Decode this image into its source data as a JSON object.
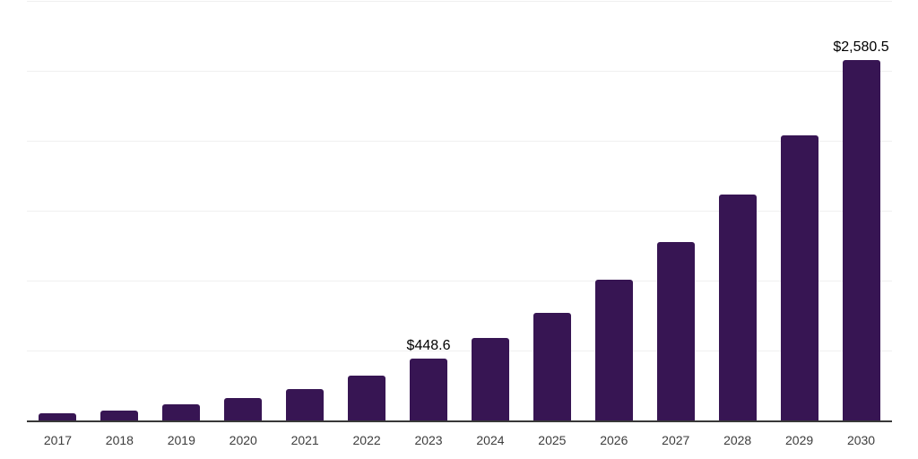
{
  "chart_data": {
    "type": "bar",
    "title": "",
    "xlabel": "",
    "ylabel": "",
    "categories": [
      "2017",
      "2018",
      "2019",
      "2020",
      "2021",
      "2022",
      "2023",
      "2024",
      "2025",
      "2026",
      "2027",
      "2028",
      "2029",
      "2030"
    ],
    "values": [
      59,
      80,
      120,
      165,
      233,
      324,
      448.6,
      594,
      775,
      1013,
      1285,
      1620,
      2045,
      2580.5
    ],
    "data_labels": {
      "2023": "$448.6",
      "2030": "$2,580.5"
    },
    "ylim": [
      0,
      3000
    ],
    "grid_step": 500,
    "grid": true,
    "legend": false,
    "colors": {
      "bar": "#371553",
      "gridline": "#f0f0f0",
      "axis": "#383838",
      "value_label": "#000000",
      "tick_label": "#3d3d3d",
      "background": "#ffffff"
    }
  }
}
